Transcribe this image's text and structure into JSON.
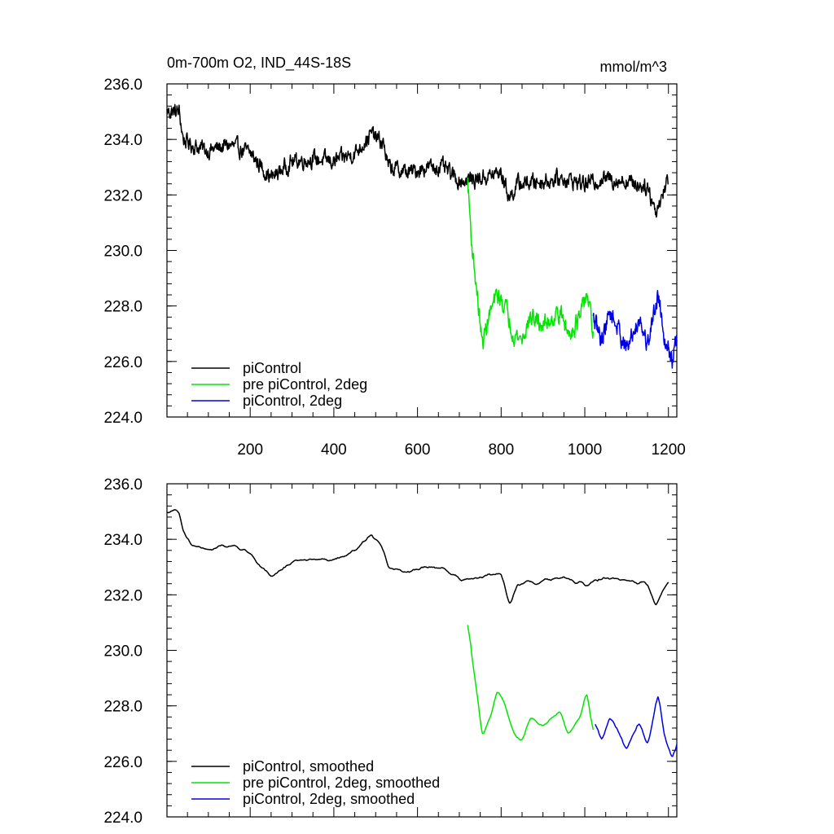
{
  "chart_data": [
    {
      "type": "line",
      "panel": "top",
      "title_left": "0m-700m O2, IND_44S-18S",
      "title_right": "mmol/m^3",
      "xlabel": "",
      "ylabel": "",
      "xlim": [
        1,
        1220
      ],
      "ylim": [
        224,
        236
      ],
      "x_ticks": [
        200,
        400,
        600,
        800,
        1000,
        1200
      ],
      "x_tick_labels": [
        "200",
        "400",
        "600",
        "800",
        "1000",
        "1200"
      ],
      "y_ticks": [
        224,
        226,
        228,
        230,
        232,
        234,
        236
      ],
      "y_tick_labels": [
        "224.0",
        "226.0",
        "228.0",
        "230.0",
        "232.0",
        "234.0",
        "236.0"
      ],
      "legend_position": "bottom-left",
      "series": [
        {
          "name": "piControl",
          "color": "#000000",
          "x_start": 1,
          "x_end": 1200,
          "anchors": [
            [
              1,
              235.0
            ],
            [
              30,
              235.0
            ],
            [
              40,
              234.0
            ],
            [
              60,
              233.8
            ],
            [
              100,
              233.6
            ],
            [
              150,
              233.8
            ],
            [
              200,
              233.5
            ],
            [
              250,
              232.6
            ],
            [
              300,
              233.2
            ],
            [
              350,
              233.3
            ],
            [
              400,
              233.2
            ],
            [
              450,
              233.5
            ],
            [
              490,
              234.2
            ],
            [
              520,
              233.8
            ],
            [
              530,
              233.0
            ],
            [
              580,
              232.8
            ],
            [
              620,
              233.0
            ],
            [
              660,
              233.0
            ],
            [
              700,
              232.5
            ],
            [
              750,
              232.6
            ],
            [
              800,
              232.8
            ],
            [
              820,
              231.9
            ],
            [
              840,
              232.4
            ],
            [
              900,
              232.5
            ],
            [
              950,
              232.6
            ],
            [
              1000,
              232.4
            ],
            [
              1050,
              232.6
            ],
            [
              1100,
              232.5
            ],
            [
              1150,
              232.3
            ],
            [
              1170,
              231.4
            ],
            [
              1200,
              232.6
            ]
          ],
          "noise": 0.45,
          "smoothed": false
        },
        {
          "name": "pre piControl, 2deg",
          "color": "#00e600",
          "x_start": 720,
          "x_end": 1020,
          "anchors": [
            [
              720,
              232.5
            ],
            [
              730,
              230.2
            ],
            [
              740,
              228.8
            ],
            [
              755,
              226.6
            ],
            [
              770,
              227.6
            ],
            [
              790,
              228.4
            ],
            [
              810,
              228.0
            ],
            [
              830,
              227.0
            ],
            [
              850,
              226.8
            ],
            [
              870,
              227.6
            ],
            [
              900,
              227.3
            ],
            [
              940,
              227.8
            ],
            [
              960,
              227.0
            ],
            [
              990,
              227.6
            ],
            [
              1005,
              228.5
            ],
            [
              1020,
              227.0
            ]
          ],
          "noise": 0.45,
          "smoothed": false
        },
        {
          "name": "piControl, 2deg",
          "color": "#0000e6",
          "x_start": 1020,
          "x_end": 1220,
          "anchors": [
            [
              1020,
              227.5
            ],
            [
              1040,
              226.8
            ],
            [
              1060,
              227.8
            ],
            [
              1080,
              227.2
            ],
            [
              1100,
              226.4
            ],
            [
              1130,
              227.6
            ],
            [
              1150,
              226.6
            ],
            [
              1175,
              228.5
            ],
            [
              1190,
              227.0
            ],
            [
              1210,
              226.0
            ],
            [
              1220,
              226.8
            ]
          ],
          "noise": 0.45,
          "smoothed": false
        }
      ]
    },
    {
      "type": "line",
      "panel": "bottom",
      "xlabel": "",
      "ylabel": "",
      "xlim": [
        1,
        1220
      ],
      "ylim": [
        224,
        236
      ],
      "x_ticks": [
        200,
        400,
        600,
        800,
        1000,
        1200
      ],
      "y_ticks": [
        224,
        226,
        228,
        230,
        232,
        234,
        236
      ],
      "y_tick_labels": [
        "224.0",
        "226.0",
        "228.0",
        "230.0",
        "232.0",
        "234.0",
        "236.0"
      ],
      "legend_position": "bottom-left",
      "series": [
        {
          "name": "piControl, smoothed",
          "color": "#000000",
          "x_start": 1,
          "x_end": 1200,
          "anchors": [
            [
              1,
              235.0
            ],
            [
              30,
              235.0
            ],
            [
              40,
              234.2
            ],
            [
              60,
              233.8
            ],
            [
              100,
              233.6
            ],
            [
              150,
              233.8
            ],
            [
              200,
              233.5
            ],
            [
              250,
              232.6
            ],
            [
              300,
              233.2
            ],
            [
              350,
              233.3
            ],
            [
              400,
              233.2
            ],
            [
              450,
              233.6
            ],
            [
              490,
              234.2
            ],
            [
              520,
              233.6
            ],
            [
              530,
              233.0
            ],
            [
              580,
              232.8
            ],
            [
              620,
              233.0
            ],
            [
              660,
              233.0
            ],
            [
              700,
              232.6
            ],
            [
              750,
              232.6
            ],
            [
              800,
              232.8
            ],
            [
              820,
              231.6
            ],
            [
              840,
              232.4
            ],
            [
              900,
              232.5
            ],
            [
              950,
              232.6
            ],
            [
              1000,
              232.4
            ],
            [
              1050,
              232.6
            ],
            [
              1100,
              232.5
            ],
            [
              1150,
              232.4
            ],
            [
              1170,
              231.5
            ],
            [
              1200,
              232.6
            ]
          ],
          "noise": 0.3,
          "smoothed": true
        },
        {
          "name": "pre piControl, 2deg, smoothed",
          "color": "#00e600",
          "x_start": 720,
          "x_end": 1020,
          "anchors": [
            [
              720,
              231.3
            ],
            [
              730,
              229.8
            ],
            [
              745,
              228.2
            ],
            [
              755,
              226.8
            ],
            [
              775,
              227.6
            ],
            [
              790,
              228.6
            ],
            [
              810,
              228.0
            ],
            [
              830,
              227.0
            ],
            [
              850,
              226.8
            ],
            [
              870,
              227.6
            ],
            [
              900,
              227.3
            ],
            [
              940,
              227.8
            ],
            [
              960,
              227.0
            ],
            [
              990,
              227.6
            ],
            [
              1005,
              228.6
            ],
            [
              1020,
              226.9
            ]
          ],
          "noise": 0.3,
          "smoothed": true
        },
        {
          "name": "piControl, 2deg, smoothed",
          "color": "#0000e6",
          "x_start": 1025,
          "x_end": 1220,
          "anchors": [
            [
              1025,
              227.4
            ],
            [
              1040,
              226.7
            ],
            [
              1060,
              227.7
            ],
            [
              1080,
              227.1
            ],
            [
              1100,
              226.4
            ],
            [
              1130,
              227.5
            ],
            [
              1150,
              226.6
            ],
            [
              1175,
              228.5
            ],
            [
              1190,
              227.0
            ],
            [
              1210,
              226.0
            ],
            [
              1220,
              226.6
            ]
          ],
          "noise": 0.3,
          "smoothed": true
        }
      ]
    }
  ]
}
